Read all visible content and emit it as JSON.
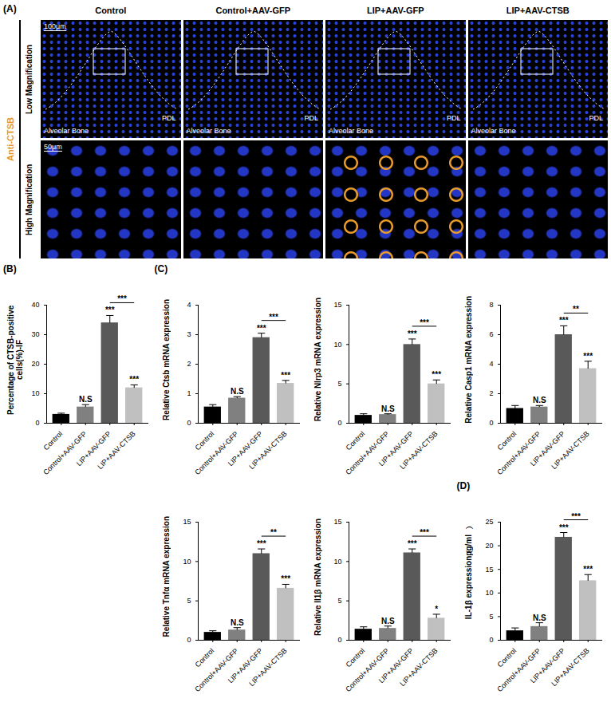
{
  "image_panel": {
    "panel_label": "(A)",
    "columns": [
      "Control",
      "Control+AAV-GFP",
      "LIP+AAV-GFP",
      "LIP+AAV-CTSB"
    ],
    "stain": "Anti-CTSB",
    "rows": [
      "Low Magnification",
      "High Magnification"
    ],
    "scale_bars": [
      "100μm",
      "50μm"
    ],
    "region_labels": [
      "Alveolar Bone",
      "PDL"
    ]
  },
  "chart_data": [
    {
      "panel_label": "(B)",
      "type": "bar",
      "y_label": "Percentage of CTSB-positive cells(%)-IF",
      "categories": [
        "Control",
        "Control+AAV-GFP",
        "LIP+AAV-GFP",
        "LIP+AAV-CTSB"
      ],
      "values": [
        3,
        5.5,
        34,
        12
      ],
      "errors": [
        0.4,
        0.8,
        2.5,
        1
      ],
      "significance": [
        null,
        "N.S",
        "***",
        "***"
      ],
      "comparison": {
        "between": [
          "LIP+AAV-GFP",
          "LIP+AAV-CTSB"
        ],
        "label": "***"
      },
      "colors": [
        "#000000",
        "#808080",
        "#595959",
        "#c0c0c0"
      ],
      "ylim": [
        0,
        40
      ],
      "yticks": [
        0,
        10,
        20,
        30,
        40
      ]
    },
    {
      "panel_label": "(C)",
      "type": "bar",
      "y_label": "Relative Ctsb mRNA expression",
      "categories": [
        "Control",
        "Control+AAV-GFP",
        "LIP+AAV-GFP",
        "LIP+AAV-CTSB"
      ],
      "values": [
        0.55,
        0.85,
        2.9,
        1.35
      ],
      "errors": [
        0.08,
        0.05,
        0.15,
        0.1
      ],
      "significance": [
        null,
        "N.S",
        "***",
        "***"
      ],
      "comparison": {
        "between": [
          "LIP+AAV-GFP",
          "LIP+AAV-CTSB"
        ],
        "label": "***"
      },
      "colors": [
        "#000000",
        "#808080",
        "#595959",
        "#c0c0c0"
      ],
      "ylim": [
        0,
        4
      ],
      "yticks": [
        0,
        1,
        2,
        3,
        4
      ]
    },
    {
      "type": "bar",
      "y_label": "Relative Nlrp3 mRNA expression",
      "categories": [
        "Control",
        "Control+AAV-GFP",
        "LIP+AAV-GFP",
        "LIP+AAV-CTSB"
      ],
      "values": [
        1,
        1.1,
        10,
        5
      ],
      "errors": [
        0.2,
        0.1,
        0.7,
        0.5
      ],
      "significance": [
        null,
        "N.S",
        "***",
        "***"
      ],
      "comparison": {
        "between": [
          "LIP+AAV-GFP",
          "LIP+AAV-CTSB"
        ],
        "label": "***"
      },
      "colors": [
        "#000000",
        "#808080",
        "#595959",
        "#c0c0c0"
      ],
      "ylim": [
        0,
        15
      ],
      "yticks": [
        0,
        5,
        10,
        15
      ]
    },
    {
      "type": "bar",
      "y_label": "Relative Casp1 mRNA expression",
      "categories": [
        "Control",
        "Control+AAV-GFP",
        "LIP+AAV-GFP",
        "LIP+AAV-CTSB"
      ],
      "values": [
        1,
        1.1,
        6,
        3.7
      ],
      "errors": [
        0.2,
        0.1,
        0.6,
        0.5
      ],
      "significance": [
        null,
        "N.S",
        "***",
        "***"
      ],
      "comparison": {
        "between": [
          "LIP+AAV-GFP",
          "LIP+AAV-CTSB"
        ],
        "label": "**"
      },
      "colors": [
        "#000000",
        "#808080",
        "#595959",
        "#c0c0c0"
      ],
      "ylim": [
        0,
        8
      ],
      "yticks": [
        0,
        2,
        4,
        6,
        8
      ]
    },
    {
      "type": "bar",
      "y_label": "Relative Tnfα mRNA expression",
      "categories": [
        "Control",
        "Control+AAV-GFP",
        "LIP+AAV-GFP",
        "LIP+AAV-CTSB"
      ],
      "values": [
        1,
        1.3,
        11,
        6.6
      ],
      "errors": [
        0.2,
        0.3,
        0.6,
        0.5
      ],
      "significance": [
        null,
        "N.S",
        "***",
        "***"
      ],
      "comparison": {
        "between": [
          "LIP+AAV-GFP",
          "LIP+AAV-CTSB"
        ],
        "label": "**"
      },
      "colors": [
        "#000000",
        "#808080",
        "#595959",
        "#c0c0c0"
      ],
      "ylim": [
        0,
        15
      ],
      "yticks": [
        0,
        5,
        10,
        15
      ]
    },
    {
      "type": "bar",
      "y_label": "Relative Il1β mRNA expression",
      "categories": [
        "Control",
        "Control+AAV-GFP",
        "LIP+AAV-GFP",
        "LIP+AAV-CTSB"
      ],
      "values": [
        1.4,
        1.5,
        11.1,
        2.8
      ],
      "errors": [
        0.3,
        0.3,
        0.5,
        0.5
      ],
      "significance": [
        null,
        "N.S",
        "***",
        "*"
      ],
      "comparison": {
        "between": [
          "LIP+AAV-GFP",
          "LIP+AAV-CTSB"
        ],
        "label": "***"
      },
      "colors": [
        "#000000",
        "#808080",
        "#595959",
        "#c0c0c0"
      ],
      "ylim": [
        0,
        15
      ],
      "yticks": [
        0,
        5,
        10,
        15
      ]
    },
    {
      "panel_label": "(D)",
      "type": "bar",
      "y_label": "IL-1β expression（pg/ml）",
      "categories": [
        "Control",
        "Control+AAV-GFP",
        "LIP+AAV-GFP",
        "LIP+AAV-CTSB"
      ],
      "values": [
        2,
        2.9,
        21.8,
        12.6
      ],
      "errors": [
        0.6,
        0.8,
        1,
        1.3
      ],
      "significance": [
        null,
        "N.S",
        "***",
        "***"
      ],
      "comparison": {
        "between": [
          "LIP+AAV-GFP",
          "LIP+AAV-CTSB"
        ],
        "label": "***"
      },
      "colors": [
        "#000000",
        "#808080",
        "#595959",
        "#c0c0c0"
      ],
      "ylim": [
        0,
        25
      ],
      "yticks": [
        0,
        5,
        10,
        15,
        20,
        25
      ]
    }
  ]
}
